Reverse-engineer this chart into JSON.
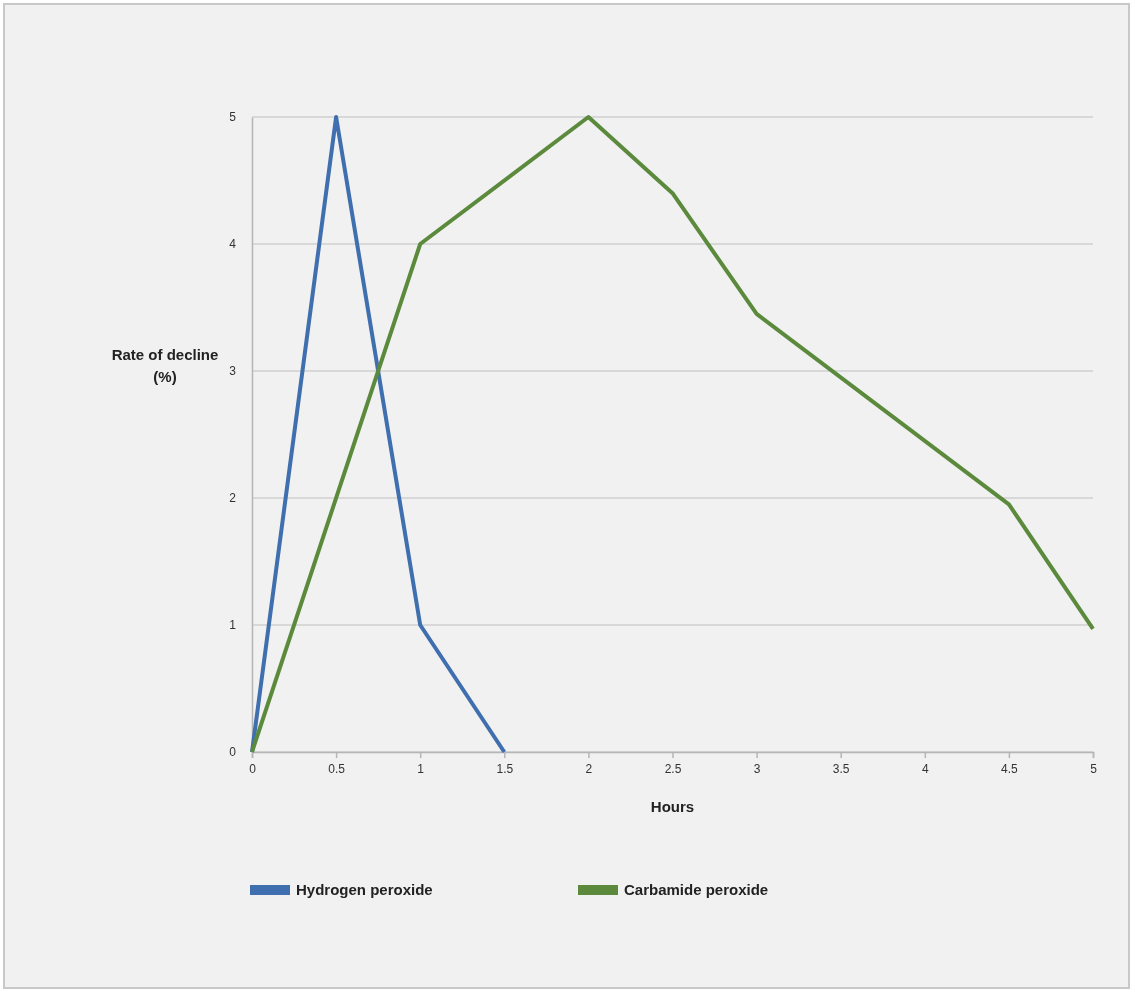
{
  "chart_data": {
    "type": "line",
    "xlabel": "Hours",
    "ylabel": "Rate of decline (%)",
    "xlim": [
      0,
      5
    ],
    "xticks": [
      0,
      0.5,
      1,
      1.5,
      2,
      2.5,
      3,
      3.5,
      4,
      4.5,
      5
    ],
    "ylim": [
      0,
      5
    ],
    "yticks": [
      0,
      1,
      2,
      3,
      4,
      5
    ],
    "grid": "y",
    "legend": "bottom",
    "marker": "none",
    "line_style": "solid",
    "series": [
      {
        "name": "Hydrogen peroxide",
        "color": "#3f6fae",
        "x": [
          0,
          0.5,
          1,
          1.5
        ],
        "values": [
          0,
          5,
          1,
          0
        ]
      },
      {
        "name": "Carbamide peroxide",
        "color": "#5b8a3c",
        "x": [
          0,
          1,
          2,
          2.5,
          3,
          4.5,
          5
        ],
        "values": [
          0,
          4,
          5,
          4.4,
          3.45,
          1.95,
          0.97
        ]
      }
    ]
  }
}
